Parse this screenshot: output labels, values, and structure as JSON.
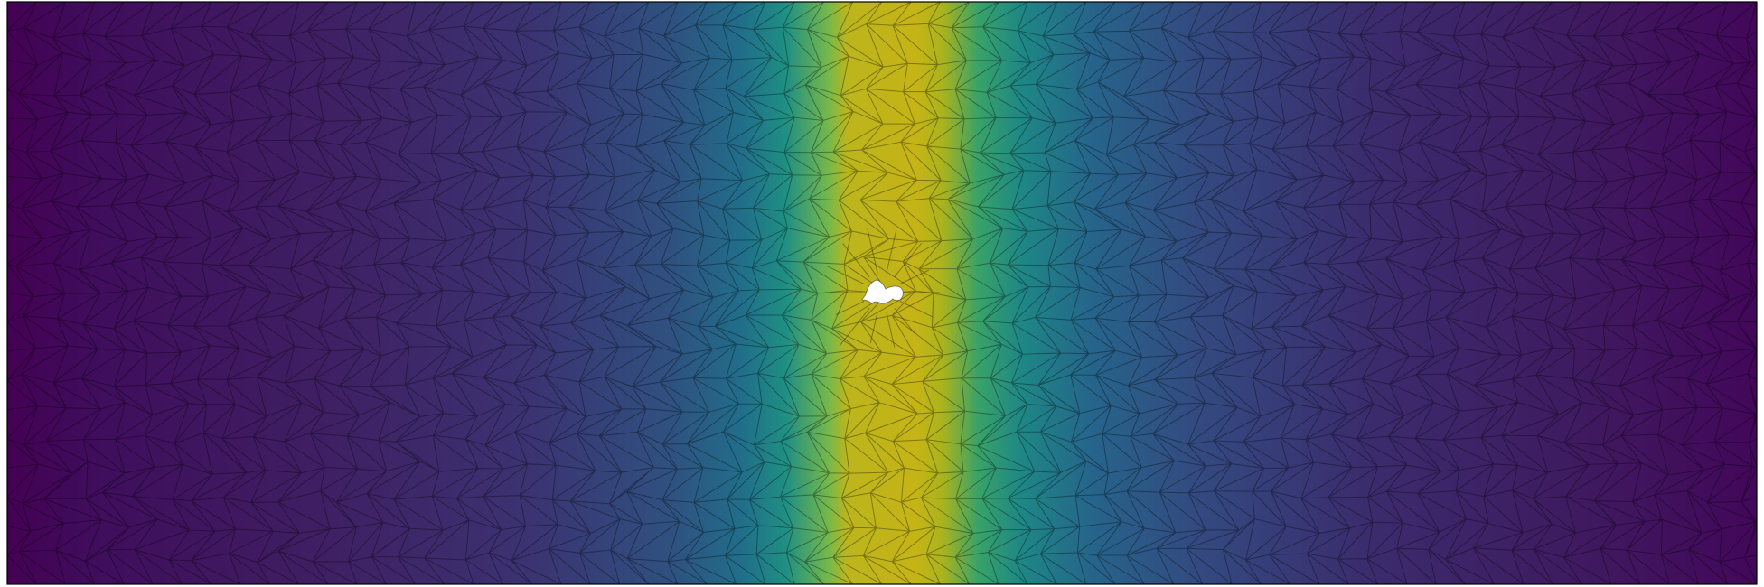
{
  "figure": {
    "type": "triangular-mesh-scalar-field",
    "colormap": "viridis",
    "colormap_stops": [
      "#440154",
      "#3b528b",
      "#21908c",
      "#5ec962",
      "#bcba17",
      "#fde725"
    ],
    "mesh_line_color": "#000000",
    "border_color": "#000000",
    "background": "#ffffff",
    "field": {
      "description_shape": "vertical band of high values at center column, low values at left/right edges",
      "peak_value_fraction": 0.78,
      "edge_value_fraction": 0.02,
      "band_center_fraction": 0.5,
      "band_width_fraction": 0.12
    },
    "hole": {
      "shape": "irregular-small-cavity",
      "fill": "#ffffff"
    }
  }
}
